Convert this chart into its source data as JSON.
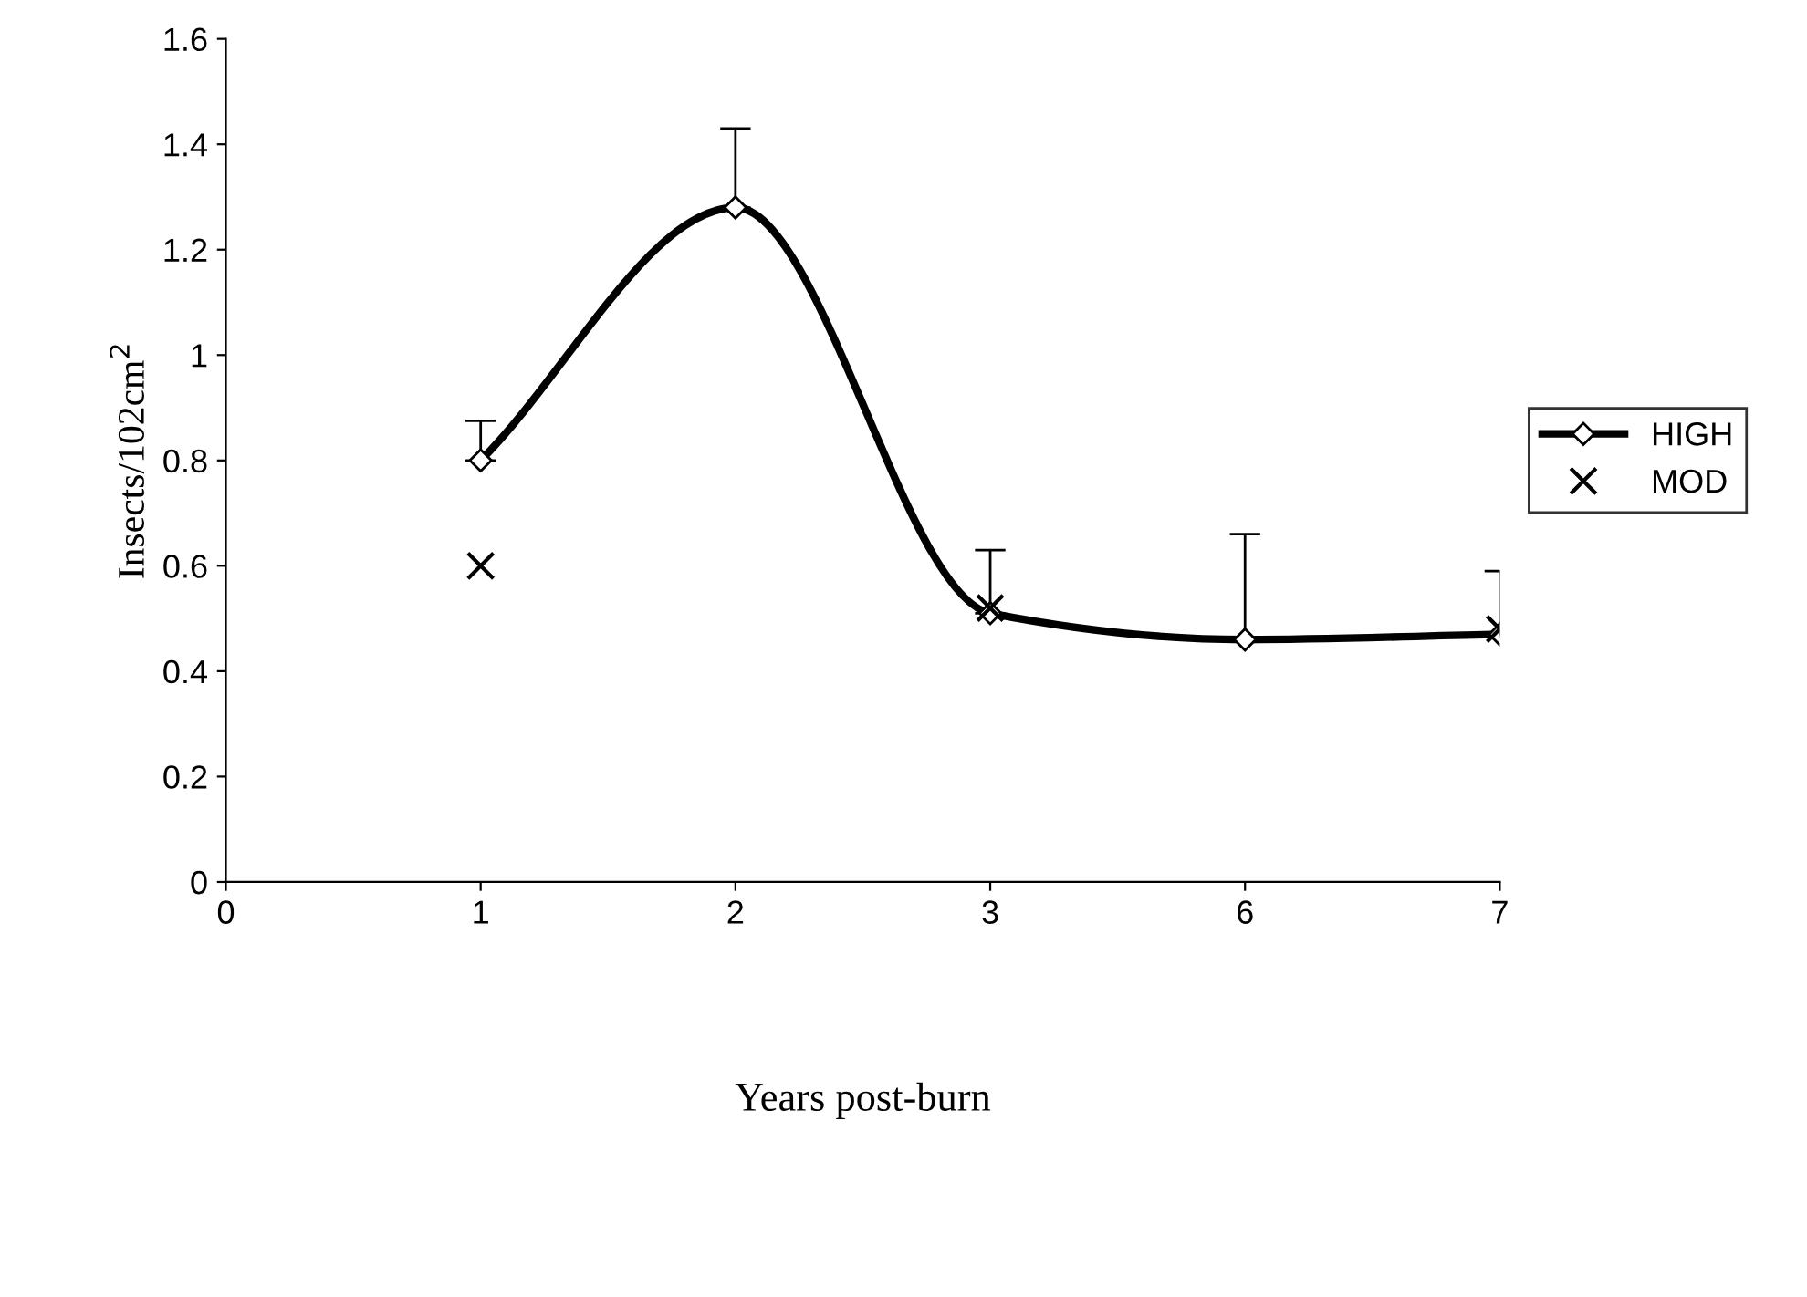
{
  "chart_data": {
    "type": "line",
    "xlabel": "Years post-burn",
    "ylabel": "Insects/102cm$^{2}$",
    "categories": [
      "0",
      "1",
      "2",
      "3",
      "6",
      "7"
    ],
    "series": [
      {
        "name": "HIGH",
        "color": "#000000",
        "marker": "diamond",
        "values": [
          null,
          0.8,
          1.28,
          0.51,
          0.46,
          0.47
        ],
        "errors": [
          null,
          [
            0.8,
            0.875
          ],
          [
            1.28,
            1.43
          ],
          [
            0.51,
            0.63
          ],
          [
            0.46,
            0.66
          ],
          [
            0.47,
            0.59
          ]
        ]
      },
      {
        "name": "MOD",
        "color": "#000000",
        "type": "scatter",
        "marker": "cross",
        "values": [
          null,
          0.6,
          null,
          0.52,
          null,
          0.48
        ]
      }
    ],
    "ylim": [
      0,
      1.6
    ],
    "yticks": [
      0,
      0.2,
      0.4,
      0.6,
      0.8,
      1,
      1.2,
      1.4,
      1.6
    ],
    "grid": false,
    "legend": "right"
  }
}
